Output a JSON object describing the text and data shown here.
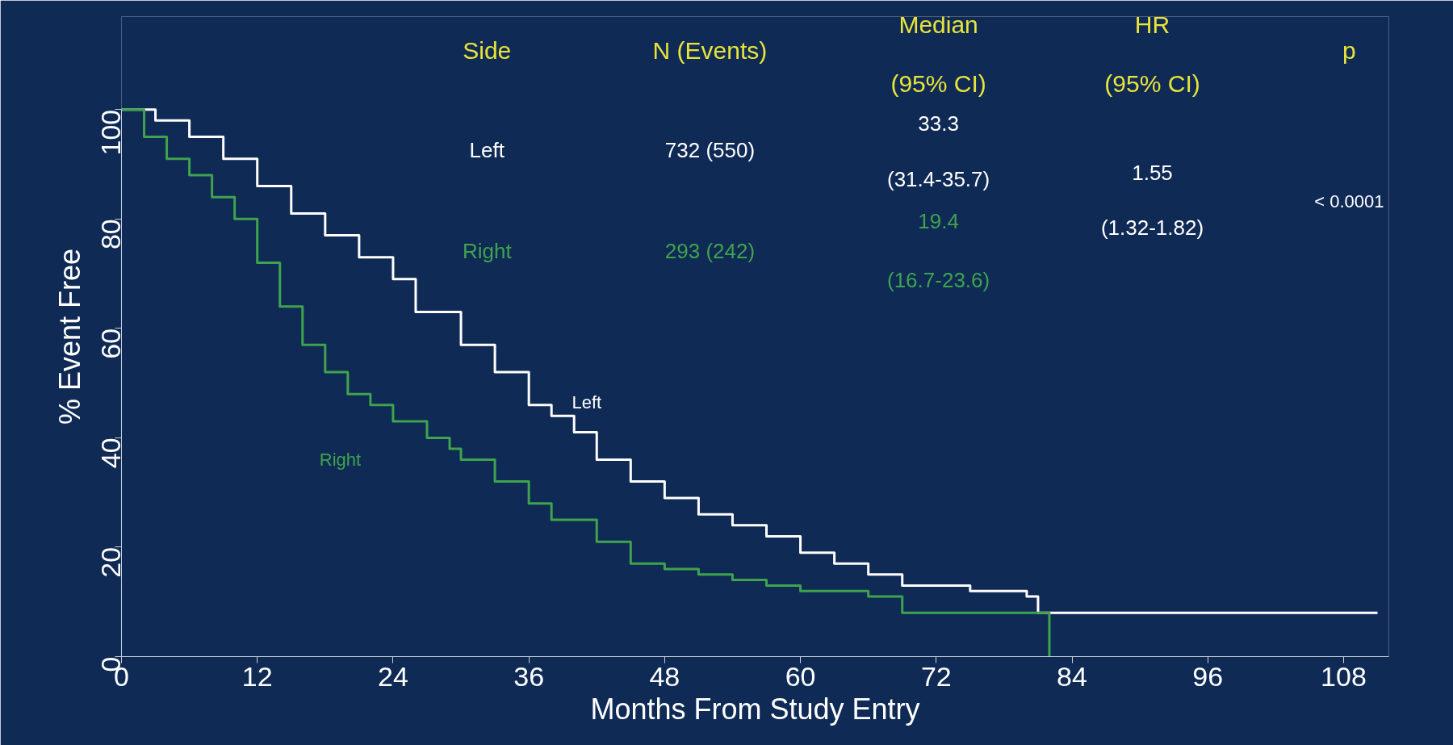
{
  "chart_data": {
    "type": "step",
    "xlabel": "Months From Study Entry",
    "ylabel": "% Event Free",
    "xlim": [
      0,
      112
    ],
    "ylim": [
      0,
      117
    ],
    "xticks": [
      0,
      12,
      24,
      36,
      48,
      60,
      72,
      84,
      96,
      108
    ],
    "yticks": [
      0,
      20,
      40,
      60,
      80,
      100
    ],
    "grid": false,
    "series": [
      {
        "name": "Left",
        "color": "#ffffff",
        "x": [
          0,
          3,
          6,
          9,
          12,
          15,
          18,
          21,
          24,
          26,
          30,
          33,
          36,
          38,
          40,
          42,
          45,
          48,
          51,
          54,
          57,
          60,
          63,
          66,
          69,
          72,
          75,
          78,
          80,
          81,
          111
        ],
        "values": [
          100,
          98,
          95,
          91,
          86,
          81,
          77,
          73,
          69,
          63,
          57,
          52,
          46,
          44,
          41,
          36,
          32,
          29,
          26,
          24,
          22,
          19,
          17,
          15,
          13,
          13,
          12,
          12,
          11,
          8,
          8
        ]
      },
      {
        "name": "Right",
        "color": "#3fa34d",
        "x": [
          0,
          2,
          4,
          6,
          8,
          10,
          12,
          14,
          16,
          18,
          20,
          22,
          24,
          27,
          29,
          30,
          33,
          36,
          38,
          42,
          45,
          48,
          51,
          54,
          57,
          60,
          63,
          66,
          69,
          72,
          78,
          82,
          82
        ],
        "values": [
          100,
          95,
          91,
          88,
          84,
          80,
          72,
          64,
          57,
          52,
          48,
          46,
          43,
          40,
          38,
          36,
          32,
          28,
          25,
          21,
          17,
          16,
          15,
          14,
          13,
          12,
          12,
          11,
          8,
          8,
          8,
          8,
          0
        ]
      }
    ],
    "annotations": [
      "Side",
      "N (Events)",
      "Median",
      "(95% CI)",
      "HR",
      "(95% CI)",
      "p",
      "Left",
      "732 (550)",
      "33.3",
      "(31.4-35.7)",
      "1.55",
      "(1.32-1.82)",
      "< 0.0001",
      "Right",
      "293 (242)",
      "19.4",
      "(16.7-23.6)"
    ]
  }
}
